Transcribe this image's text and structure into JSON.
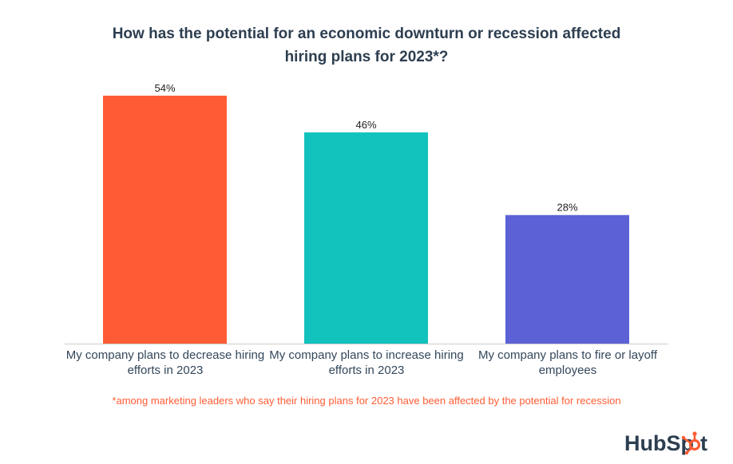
{
  "title_lines": [
    "How has the potential for an economic downturn or recession affected",
    "hiring plans for 2023*?"
  ],
  "chart_data": {
    "type": "bar",
    "title": "How has the potential for an economic downturn or recession affected hiring plans for 2023*?",
    "categories": [
      "My company plans to decrease hiring efforts in 2023",
      "My company plans to increase hiring efforts in 2023",
      "My company plans to fire or layoff employees"
    ],
    "category_lines": [
      [
        "My company plans to decrease hiring",
        "efforts in 2023"
      ],
      [
        "My company plans to increase hiring",
        "efforts in 2023"
      ],
      [
        "My company plans to fire or layoff",
        "employees"
      ]
    ],
    "values": [
      54,
      46,
      28
    ],
    "value_labels": [
      "54%",
      "46%",
      "28%"
    ],
    "colors": [
      "#ff5c35",
      "#12c2bd",
      "#5c62d6"
    ],
    "xlabel": "",
    "ylabel": "",
    "ylim": [
      0,
      54
    ],
    "grid": false,
    "legend": "none"
  },
  "footnote": "*among marketing leaders who say their hiring plans for 2023 have been affected by the potential for recession",
  "logo": {
    "text_before": "HubSp",
    "text_after": "t",
    "text_color": "#2d3e50",
    "sprocket_color": "#ff5c35"
  }
}
